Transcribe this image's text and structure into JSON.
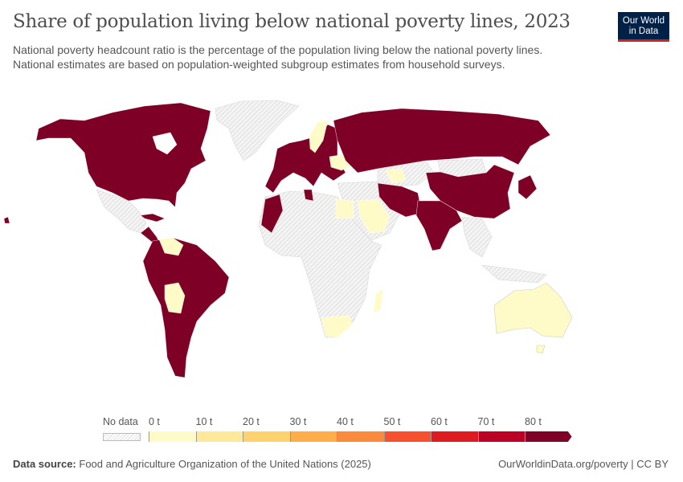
{
  "header": {
    "title": "Share of population living below national poverty lines, 2023",
    "subtitle_1": "National poverty headcount ratio is the percentage of the population living below the national poverty lines.",
    "subtitle_2": "National estimates are based on population-weighted subgroup estimates from household surveys.",
    "logo_line1": "Our World",
    "logo_line2": "in Data"
  },
  "map": {
    "no_data_color": "#e6e6e6",
    "high_color": "#7f0026",
    "low_color": "#fffbc8"
  },
  "legend": {
    "no_data_label": "No data",
    "ticks": [
      "0 t",
      "10 t",
      "20 t",
      "30 t",
      "40 t",
      "50 t",
      "60 t",
      "70 t",
      "80 t"
    ],
    "bin_colors": [
      "#fffbc8",
      "#fee99a",
      "#fed36f",
      "#fdae4b",
      "#fb8a3d",
      "#f6502e",
      "#dd1b20",
      "#bc0025",
      "#7f0026"
    ]
  },
  "footer": {
    "source_label": "Data source:",
    "source_text": "Food and Agriculture Organization of the United Nations (2025)",
    "right_text": "OurWorldinData.org/poverty | CC BY"
  }
}
